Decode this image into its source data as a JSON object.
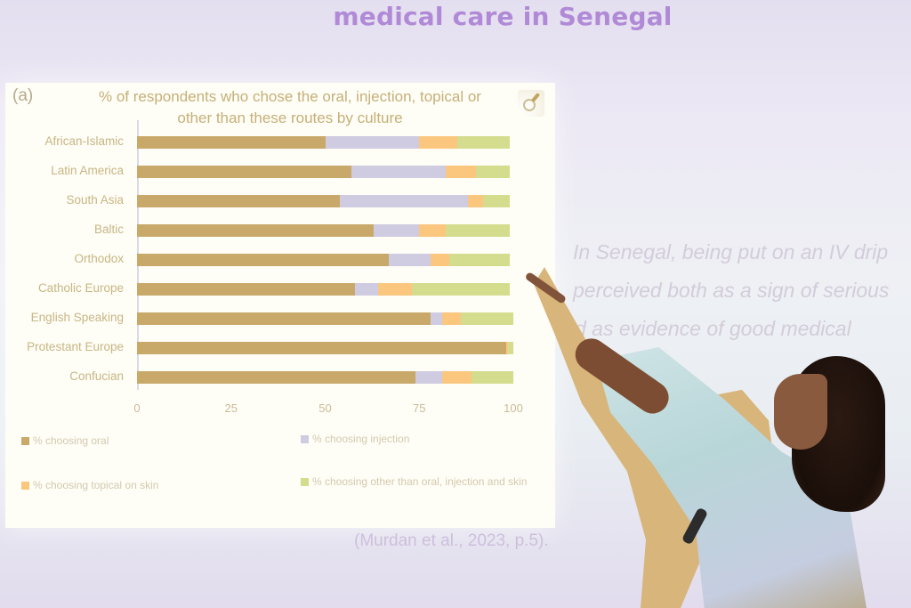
{
  "slide": {
    "title": "medical care in Senegal",
    "quote_lines": [
      "In Senegal, being put on an IV drip",
      "perceived both as a sign of serious",
      "d as evidence of good medical"
    ],
    "citation": "(Murdan et al., 2023, p.5)."
  },
  "chart": {
    "panel_label": "(a)",
    "title_line1": "% of respondents who chose the oral, injection, topical or",
    "title_line2": "other than these routes by culture",
    "magnifier_icon": "magnifier-icon"
  },
  "chart_data": {
    "type": "bar",
    "orientation": "horizontal",
    "stacked": true,
    "title": "% of respondents who chose the oral, injection, topical or other than these routes by culture",
    "xlabel": "",
    "ylabel": "",
    "xlim": [
      0,
      100
    ],
    "x_ticks": [
      "0",
      "25",
      "50",
      "75",
      "100"
    ],
    "grid": false,
    "legend_position": "bottom",
    "categories": [
      "African-Islamic",
      "Latin America",
      "South Asia",
      "Baltic",
      "Orthodox",
      "Catholic Europe",
      "English Speaking",
      "Protestant Europe",
      "Confucian"
    ],
    "series": [
      {
        "name": "% choosing oral",
        "color": "#c9a96a",
        "values": [
          50,
          57,
          54,
          63,
          67,
          58,
          78,
          98,
          74
        ]
      },
      {
        "name": "% choosing injection",
        "color": "#cfcbe0",
        "values": [
          25,
          25,
          34,
          12,
          11,
          6,
          3,
          0,
          7
        ]
      },
      {
        "name": "% choosing topical on skin",
        "color": "#fbc77f",
        "values": [
          10,
          8,
          4,
          7,
          5,
          9,
          5,
          0.5,
          8
        ]
      },
      {
        "name": "% choosing other than oral, injection and skin",
        "color": "#d4dc8e",
        "values": [
          14,
          9,
          7,
          17,
          16,
          26,
          14,
          1.5,
          11
        ]
      }
    ]
  },
  "colors": {
    "slide_title": "#b08ad6",
    "chart_text": "#c5b078",
    "panel_bg": "#fefdf6"
  }
}
